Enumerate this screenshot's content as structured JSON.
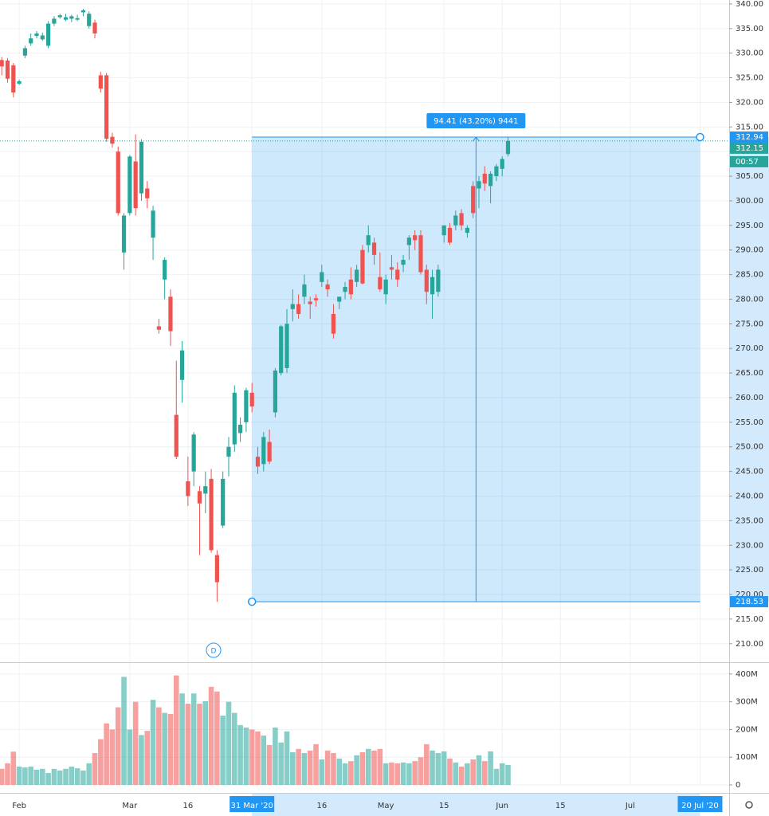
{
  "chart_data": {
    "type": "candlestick",
    "open": [
      328.6,
      328.5,
      327.5,
      323.8,
      329.5,
      332,
      333.5,
      332.8,
      331.5,
      336,
      337.3,
      336.8,
      337,
      336.8,
      338.3,
      335.5,
      336.2,
      325.5,
      325.5,
      313,
      310,
      289.5,
      297.5,
      308,
      301.5,
      302.5,
      292.5,
      274.5,
      284,
      280.5,
      256.5,
      263.6,
      243,
      245,
      241,
      240.5,
      243.5,
      228,
      234,
      248,
      250.5,
      252.8,
      255,
      261,
      248,
      246.5,
      251,
      257,
      265,
      266,
      278,
      279,
      280.5,
      279.5,
      280.2,
      283.5,
      283,
      277,
      279.5,
      281.5,
      284,
      283.5,
      290,
      291,
      291.5,
      284.5,
      281,
      286.5,
      286,
      287,
      291,
      293,
      293,
      286,
      281,
      281.5,
      293,
      294.5,
      295,
      297.5,
      293.5,
      303,
      302.5,
      305.5,
      303,
      305,
      306.5,
      309.5
    ],
    "high": [
      329.2,
      329,
      328,
      324.6,
      331.5,
      334,
      334.5,
      334.2,
      336.5,
      337.5,
      338,
      338,
      337.8,
      337.8,
      339,
      338.5,
      336.8,
      326.2,
      326,
      313.8,
      311,
      297.5,
      309.3,
      313.5,
      312.5,
      304,
      299,
      276,
      288.5,
      282,
      267.5,
      271.5,
      248,
      253,
      242,
      245,
      245.5,
      229,
      245,
      252,
      262.5,
      256,
      262,
      263,
      250,
      253,
      253.5,
      266,
      274.8,
      278,
      282,
      281,
      285,
      280.5,
      281,
      287,
      284,
      279,
      280.5,
      283.5,
      286.5,
      287,
      291,
      295,
      292.5,
      289.5,
      285,
      289,
      287.5,
      289,
      293,
      294,
      294,
      287,
      286,
      287,
      295,
      295.5,
      298,
      298.3,
      295,
      304,
      305,
      307,
      306,
      307.5,
      309,
      313
    ],
    "low": [
      325.5,
      324,
      321,
      323.5,
      329,
      331.5,
      333,
      332.5,
      331,
      335.5,
      337,
      336.5,
      336.3,
      336.5,
      337.5,
      335,
      333,
      322,
      312,
      310.8,
      297,
      286,
      297,
      297,
      300,
      298.5,
      288,
      273,
      280,
      270.5,
      247.5,
      259,
      238,
      242,
      228,
      236.5,
      228.5,
      218.5,
      233.5,
      244,
      249,
      251,
      253,
      257,
      244.5,
      245,
      246.5,
      256,
      264.5,
      265,
      275.5,
      276,
      279,
      276,
      278.5,
      282.5,
      280.5,
      272,
      278,
      280,
      280,
      282.5,
      283,
      289.5,
      287,
      281.5,
      279,
      284,
      282.5,
      285.5,
      288,
      290,
      285,
      279,
      276,
      280.5,
      291.5,
      291,
      294,
      294,
      292.5,
      296.5,
      298.5,
      302,
      299.5,
      304,
      305,
      309
    ],
    "close": [
      327.3,
      324.8,
      322,
      324.3,
      331,
      333,
      334,
      333.6,
      336,
      337,
      337.7,
      337.3,
      337.5,
      337.1,
      338.7,
      338,
      334,
      322.8,
      312.6,
      311.6,
      297.5,
      297,
      309,
      298.5,
      312,
      300.5,
      298,
      273.8,
      288,
      273.5,
      248,
      269.6,
      240,
      252.5,
      238.5,
      242,
      229,
      222.5,
      243.5,
      250,
      261,
      254.5,
      261.5,
      258.2,
      246,
      252,
      247,
      265.5,
      274.5,
      275,
      279,
      277,
      283,
      279,
      279.8,
      285.5,
      282,
      273,
      280.5,
      282.5,
      281,
      286,
      283.2,
      293,
      289,
      282,
      284,
      286,
      284,
      288,
      292.5,
      292,
      285.5,
      281.5,
      284.5,
      286,
      295,
      291.5,
      297,
      295,
      294.5,
      297.5,
      304,
      303.5,
      305.5,
      307,
      308.5,
      312.15
    ],
    "volume": [
      58,
      78,
      120,
      66,
      63,
      66,
      55,
      58,
      43,
      58,
      52,
      58,
      66,
      60,
      52,
      78,
      115,
      165,
      222,
      200,
      280,
      390,
      200,
      300,
      180,
      195,
      307,
      280,
      260,
      256,
      395,
      330,
      293,
      330,
      293,
      302,
      354,
      337,
      250,
      300,
      260,
      216,
      207,
      200,
      193,
      178,
      144,
      207,
      153,
      193,
      118,
      130,
      115,
      124,
      147,
      92,
      124,
      115,
      95,
      78,
      86,
      107,
      118,
      130,
      124,
      130,
      78,
      81,
      78,
      81,
      78,
      86,
      100,
      147,
      124,
      115,
      121,
      95,
      81,
      66,
      78,
      92,
      107,
      86,
      121,
      58,
      78,
      72
    ],
    "up_color": "#26a69a",
    "down_color": "#ef5350",
    "xlim": [
      -0.3,
      125
    ],
    "xticks": [
      {
        "value": 3,
        "label": "Feb"
      },
      {
        "value": 22,
        "label": "Mar"
      },
      {
        "value": 32,
        "label": "16"
      },
      {
        "value": 43,
        "label": "31 Mar '20"
      },
      {
        "value": 55,
        "label": "16"
      },
      {
        "value": 66,
        "label": "May"
      },
      {
        "value": 76,
        "label": "15"
      },
      {
        "value": 86,
        "label": "Jun"
      },
      {
        "value": 96,
        "label": "15"
      },
      {
        "value": 108,
        "label": "Jul"
      },
      {
        "value": 120,
        "label": "20 Jul '20"
      }
    ],
    "ylim": [
      206.4,
      340.8
    ],
    "yticks": [
      {
        "value": 210,
        "label": "210.00"
      },
      {
        "value": 215,
        "label": "215.00"
      },
      {
        "value": 220,
        "label": "220.00"
      },
      {
        "value": 225,
        "label": "225.00"
      },
      {
        "value": 230,
        "label": "230.00"
      },
      {
        "value": 235,
        "label": "235.00"
      },
      {
        "value": 240,
        "label": "240.00"
      },
      {
        "value": 245,
        "label": "245.00"
      },
      {
        "value": 250,
        "label": "250.00"
      },
      {
        "value": 255,
        "label": "255.00"
      },
      {
        "value": 260,
        "label": "260.00"
      },
      {
        "value": 265,
        "label": "265.00"
      },
      {
        "value": 270,
        "label": "270.00"
      },
      {
        "value": 275,
        "label": "275.00"
      },
      {
        "value": 280,
        "label": "280.00"
      },
      {
        "value": 285,
        "label": "285.00"
      },
      {
        "value": 290,
        "label": "290.00"
      },
      {
        "value": 295,
        "label": "295.00"
      },
      {
        "value": 300,
        "label": "300.00"
      },
      {
        "value": 305,
        "label": "305.00"
      },
      {
        "value": 310,
        "label": "310.00"
      },
      {
        "value": 315,
        "label": "315.00"
      },
      {
        "value": 320,
        "label": "320.00"
      },
      {
        "value": 325,
        "label": "325.00"
      },
      {
        "value": 330,
        "label": "330.00"
      },
      {
        "value": 335,
        "label": "335.00"
      },
      {
        "value": 340,
        "label": "340.00"
      }
    ],
    "volume_ylim": [
      0,
      437
    ],
    "volume_yticks": [
      0,
      {
        "value": 100,
        "label": "100M"
      },
      {
        "value": 200,
        "label": "200M"
      },
      {
        "value": 300,
        "label": "300M"
      },
      {
        "value": 400,
        "label": "400M"
      }
    ],
    "grid": true,
    "measure": {
      "x_start": 43,
      "x_end": 120,
      "start_price": {
        "value": 218.53,
        "label": "218.53"
      },
      "end_price": {
        "value": 312.94,
        "label": "312.94"
      },
      "label": "94.41 (43.20%) 9441"
    },
    "last_price": {
      "value": 312.15,
      "label": "312.15"
    },
    "countdown": "00:57",
    "interval_marker": "D"
  }
}
